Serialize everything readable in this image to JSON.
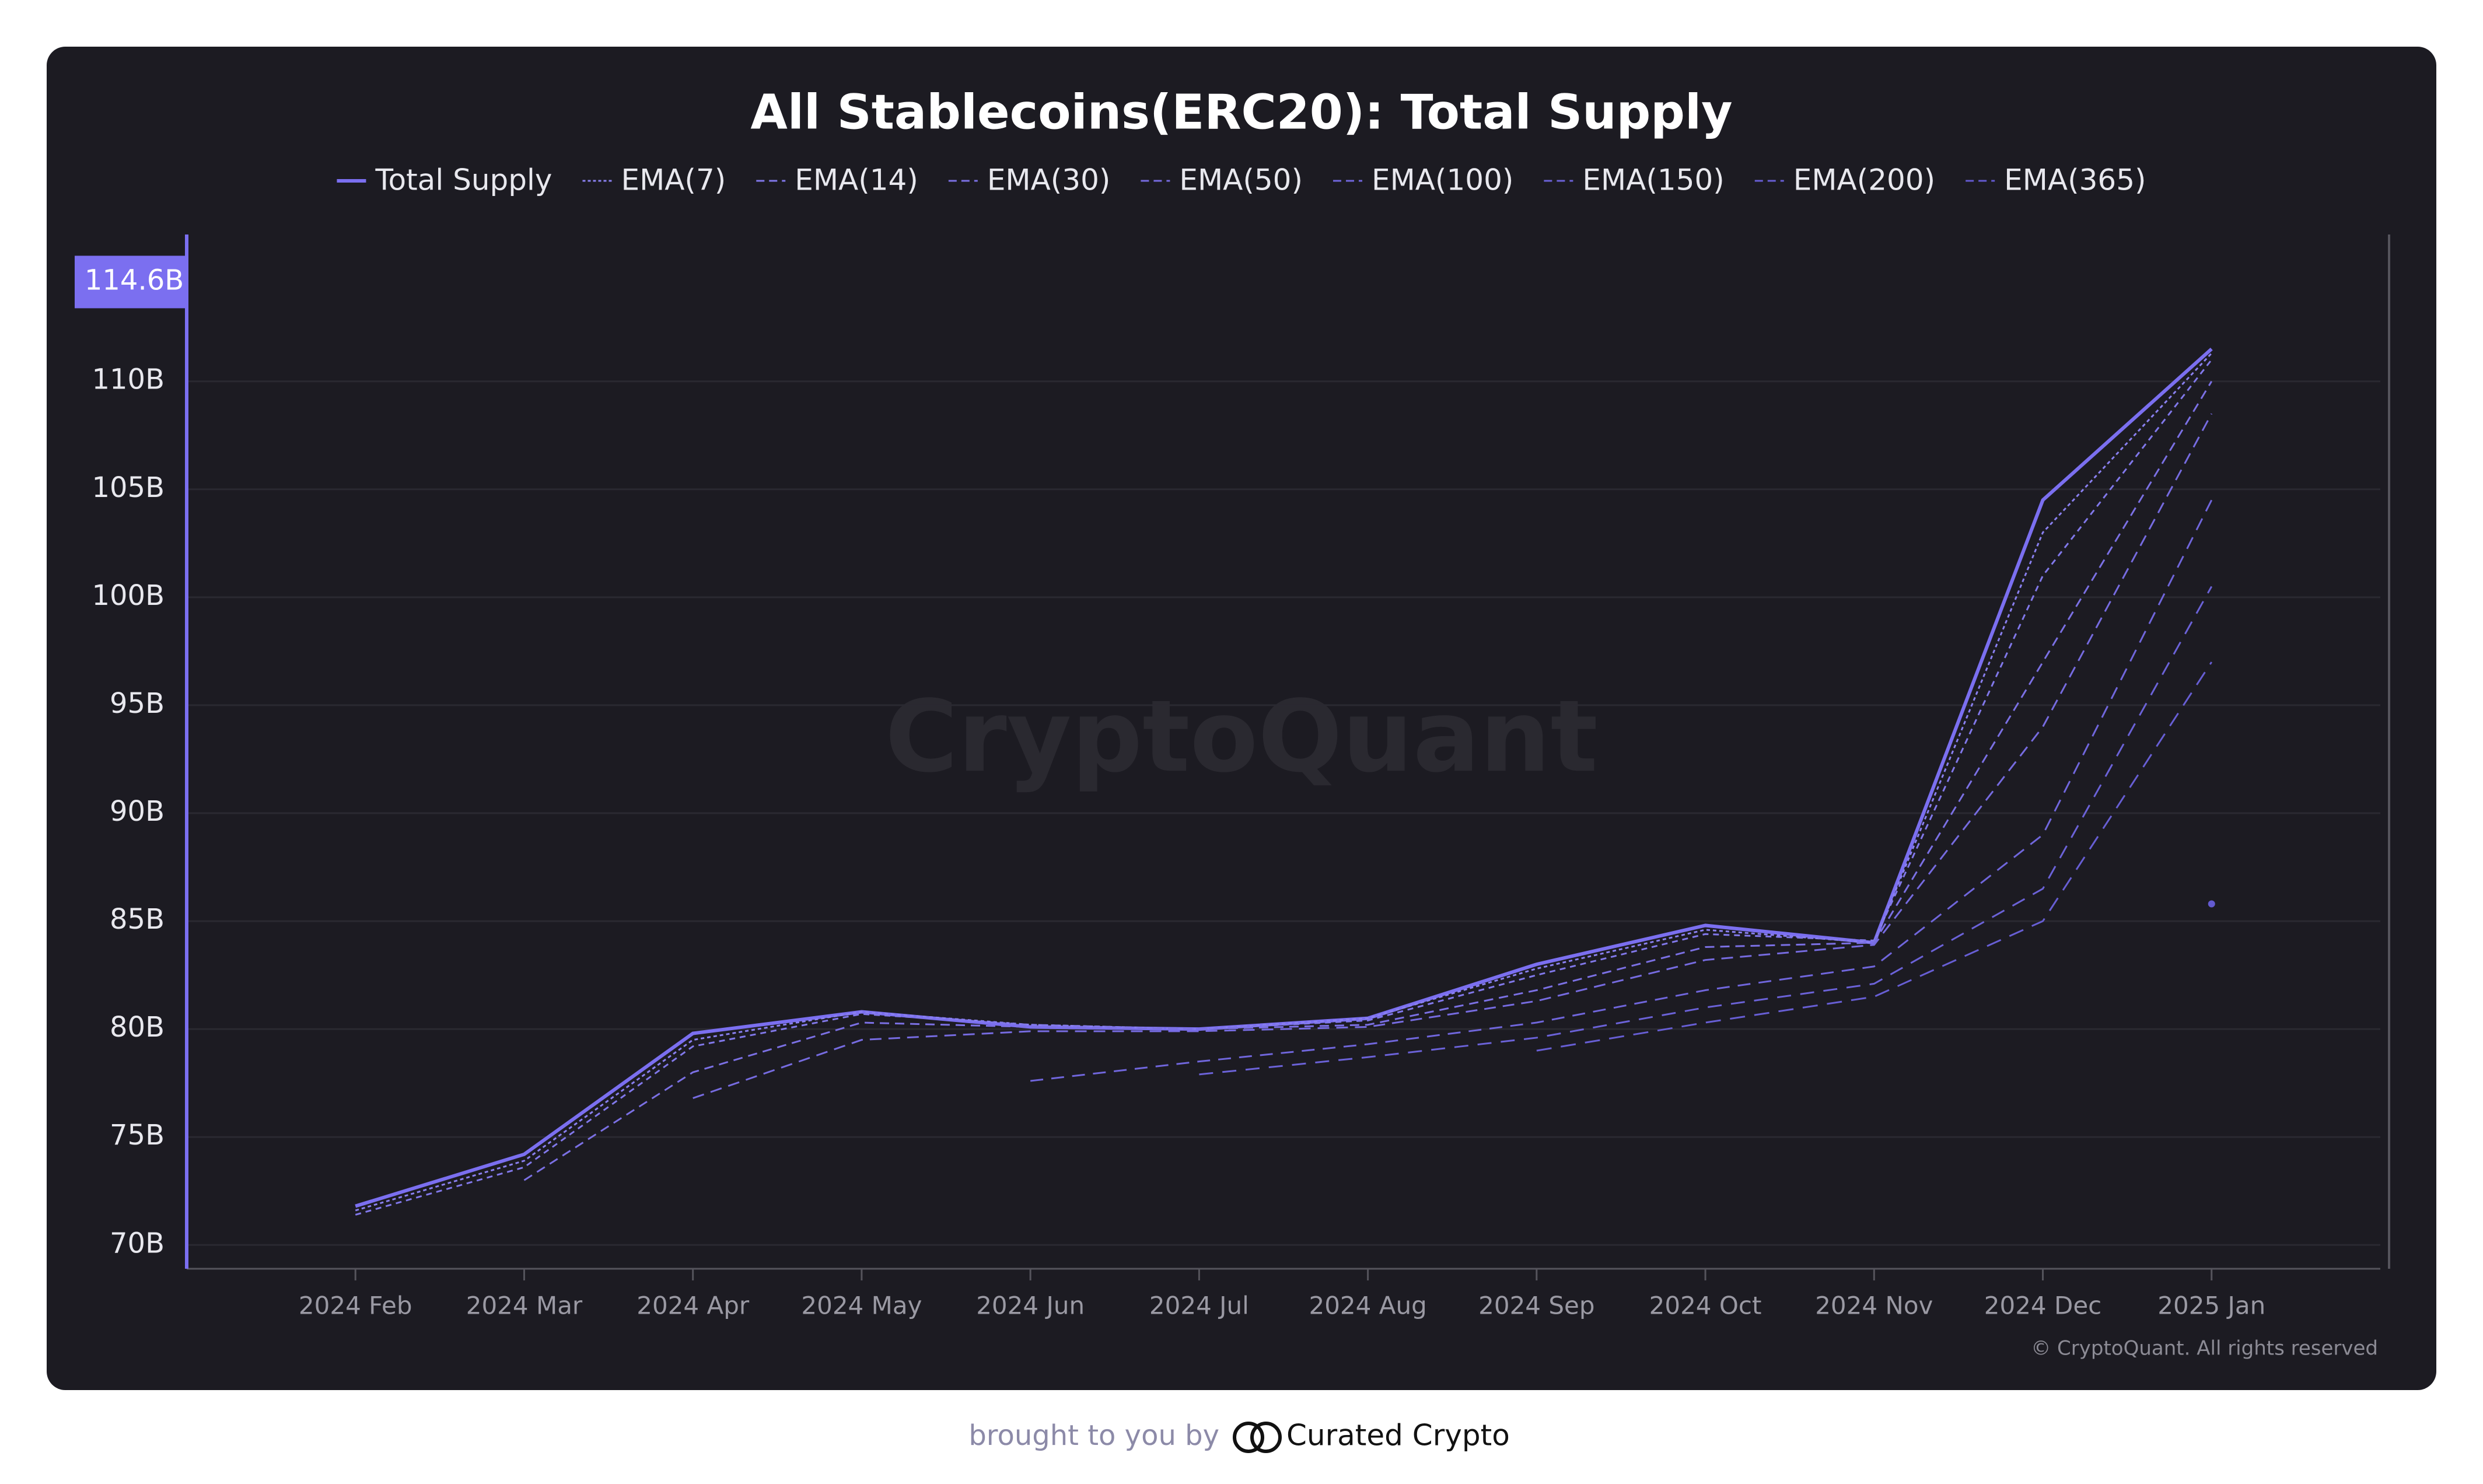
{
  "chart_data": {
    "type": "line",
    "title": "All Stablecoins(ERC20): Total Supply",
    "x": [
      "2024-02",
      "2024-03",
      "2024-04",
      "2024-05",
      "2024-06",
      "2024-07",
      "2024-08",
      "2024-09",
      "2024-10",
      "2024-11",
      "2024-12",
      "2025-01"
    ],
    "series": [
      {
        "name": "Total Supply",
        "color": "#7b6ff0",
        "values": [
          71.8,
          74.2,
          79.8,
          80.8,
          80.1,
          80.0,
          80.5,
          83.0,
          84.8,
          84.0,
          104.5,
          111.5
        ]
      },
      {
        "name": "EMA(7)",
        "color": "#8a80f0",
        "values": [
          71.6,
          73.9,
          79.5,
          80.8,
          80.2,
          80.0,
          80.5,
          82.8,
          84.6,
          84.0,
          103.0,
          111.3
        ]
      },
      {
        "name": "EMA(14)",
        "color": "#8178ea",
        "values": [
          71.4,
          73.6,
          79.2,
          80.7,
          80.2,
          80.0,
          80.4,
          82.5,
          84.4,
          84.1,
          101.0,
          111.0
        ]
      },
      {
        "name": "EMA(30)",
        "color": "#7b70e4",
        "values": [
          null,
          73.0,
          78.0,
          80.3,
          80.1,
          80.0,
          80.2,
          81.8,
          83.8,
          84.0,
          97.0,
          110.0
        ]
      },
      {
        "name": "EMA(50)",
        "color": "#766be0",
        "values": [
          null,
          null,
          76.8,
          79.5,
          79.9,
          79.9,
          80.1,
          81.3,
          83.2,
          83.9,
          94.0,
          108.5
        ]
      },
      {
        "name": "EMA(100)",
        "color": "#7066dc",
        "values": [
          null,
          null,
          null,
          null,
          77.6,
          78.5,
          79.3,
          80.3,
          81.8,
          82.9,
          89.0,
          104.5
        ]
      },
      {
        "name": "EMA(150)",
        "color": "#6b62d8",
        "values": [
          null,
          null,
          null,
          null,
          null,
          77.9,
          78.7,
          79.6,
          81.0,
          82.1,
          86.5,
          100.5
        ]
      },
      {
        "name": "EMA(200)",
        "color": "#675ed4",
        "values": [
          null,
          null,
          null,
          null,
          null,
          null,
          null,
          79.0,
          80.3,
          81.5,
          85.0,
          97.0
        ]
      },
      {
        "name": "EMA(365)",
        "color": "#635ad0",
        "values": [
          null,
          null,
          null,
          null,
          null,
          null,
          null,
          null,
          null,
          null,
          null,
          85.8
        ]
      }
    ],
    "xlim": [
      "2024-01",
      "2025-02"
    ],
    "xticks": [
      {
        "value": "2024-02",
        "label": "2024 Feb"
      },
      {
        "value": "2024-03",
        "label": "2024 Mar"
      },
      {
        "value": "2024-04",
        "label": "2024 Apr"
      },
      {
        "value": "2024-05",
        "label": "2024 May"
      },
      {
        "value": "2024-06",
        "label": "2024 Jun"
      },
      {
        "value": "2024-07",
        "label": "2024 Jul"
      },
      {
        "value": "2024-08",
        "label": "2024 Aug"
      },
      {
        "value": "2024-09",
        "label": "2024 Sep"
      },
      {
        "value": "2024-10",
        "label": "2024 Oct"
      },
      {
        "value": "2024-11",
        "label": "2024 Nov"
      },
      {
        "value": "2024-12",
        "label": "2024 Dec"
      },
      {
        "value": "2025-01",
        "label": "2025 Jan"
      }
    ],
    "ylim": [
      68.9,
      116.8
    ],
    "yticks": [
      {
        "value": 70,
        "label": "70B"
      },
      {
        "value": 75,
        "label": "75B"
      },
      {
        "value": 80,
        "label": "80B"
      },
      {
        "value": 85,
        "label": "85B"
      },
      {
        "value": 90,
        "label": "90B"
      },
      {
        "value": 95,
        "label": "95B"
      },
      {
        "value": 100,
        "label": "100B"
      },
      {
        "value": 105,
        "label": "105B"
      },
      {
        "value": 110,
        "label": "110B"
      }
    ],
    "current_value": {
      "value": 114.6,
      "label": "114.6B"
    },
    "grid": true,
    "watermark": "CryptoQuant",
    "copyright": "© CryptoQuant. All rights reserved"
  },
  "footer": {
    "prefix": "brought to you by",
    "brand": "Curated Crypto"
  }
}
